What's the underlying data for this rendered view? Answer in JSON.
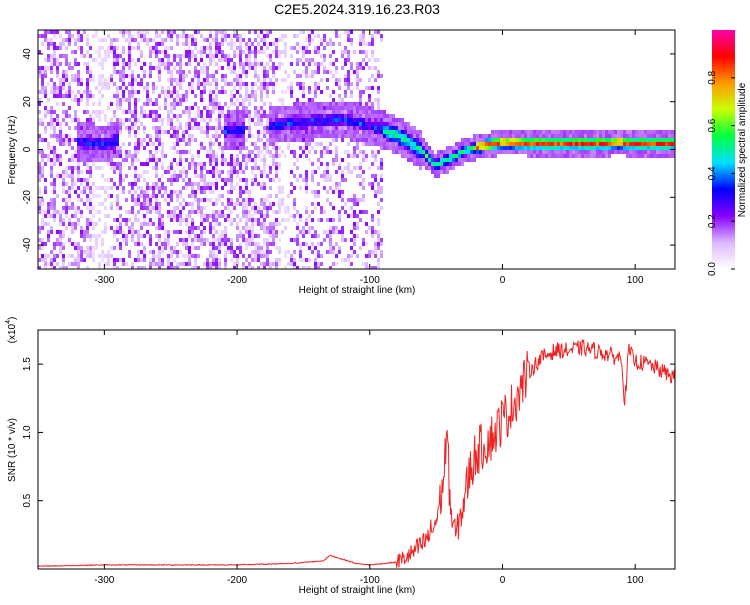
{
  "title": "C2E5.2024.319.16.23.R03",
  "chart_data": [
    {
      "type": "heatmap",
      "xlabel": "Height of straight line (km)",
      "ylabel": "Frequency (Hz)",
      "xlim": [
        -350,
        130
      ],
      "ylim": [
        -50,
        50
      ],
      "x_ticks": [
        -300,
        -200,
        -100,
        0,
        100
      ],
      "x_tick_labels": [
        "-300",
        "-200",
        "-100",
        "0",
        "100"
      ],
      "y_ticks": [
        -40,
        -20,
        0,
        20,
        40
      ],
      "y_tick_labels": [
        "-40",
        "-20",
        "0",
        "20",
        "40"
      ],
      "colorbar": {
        "label": "Normalized spectral amplitude",
        "range": [
          0,
          1
        ],
        "ticks": [
          0.0,
          0.2,
          0.4,
          0.6,
          0.8
        ],
        "tick_labels": [
          "0.0",
          "0.2",
          "0.4",
          "0.6",
          "0.8"
        ],
        "colors": [
          "#ffffff",
          "#dcb8ff",
          "#8800ff",
          "#0000ff",
          "#00e0ff",
          "#00ff40",
          "#c8ff00",
          "#ff9900",
          "#ff0000",
          "#ff00aa"
        ]
      },
      "ridge": {
        "x": [
          -310,
          -300,
          -290,
          -200,
          -175,
          -160,
          -140,
          -120,
          -100,
          -90,
          -80,
          -70,
          -60,
          -50,
          -45,
          -40,
          -30,
          -20,
          -10,
          0,
          20,
          40,
          60,
          80,
          87,
          95,
          110,
          130
        ],
        "frequency": [
          3,
          2,
          4,
          8,
          10,
          11,
          12,
          12.5,
          10,
          8,
          6,
          3,
          -1,
          -7,
          -5,
          -4,
          -1,
          1,
          2,
          3,
          2.5,
          2.5,
          2.5,
          2.5,
          3,
          2.5,
          2.5,
          2.5
        ]
      },
      "noise_region_x": [
        -350,
        -90
      ],
      "grid": false
    },
    {
      "type": "line",
      "xlabel": "Height of straight line (km)",
      "ylabel": "SNR (10 * v/v)",
      "y_multiplier": "(x10",
      "y_multiplier_exp": "4",
      "y_multiplier_close": ")",
      "xlim": [
        -350,
        130
      ],
      "ylim": [
        0,
        1.75
      ],
      "x_ticks": [
        -300,
        -200,
        -100,
        0,
        100
      ],
      "x_tick_labels": [
        "-300",
        "-200",
        "-100",
        "0",
        "100"
      ],
      "y_ticks": [
        0.5,
        1.0,
        1.5
      ],
      "y_tick_labels": [
        "0.5",
        "1.0",
        "1.5"
      ],
      "series": [
        {
          "color": "#ee2222",
          "x": [
            -350,
            -300,
            -260,
            -200,
            -160,
            -135,
            -130,
            -110,
            -100,
            -80,
            -70,
            -60,
            -55,
            -50,
            -45,
            -42,
            -40,
            -38,
            -35,
            -30,
            -25,
            -20,
            -15,
            -10,
            -5,
            0,
            5,
            10,
            15,
            20,
            30,
            40,
            50,
            60,
            70,
            80,
            85,
            90,
            92,
            95,
            100,
            110,
            120,
            130
          ],
          "values": [
            0.02,
            0.03,
            0.03,
            0.03,
            0.04,
            0.06,
            0.1,
            0.04,
            0.03,
            0.05,
            0.1,
            0.18,
            0.25,
            0.35,
            0.6,
            1.0,
            0.6,
            0.35,
            0.25,
            0.45,
            0.7,
            0.85,
            0.9,
            0.95,
            1.0,
            1.1,
            1.15,
            1.25,
            1.35,
            1.45,
            1.55,
            1.6,
            1.6,
            1.62,
            1.6,
            1.57,
            1.55,
            1.55,
            1.2,
            1.6,
            1.52,
            1.5,
            1.45,
            1.4
          ]
        }
      ],
      "grid": false
    }
  ]
}
